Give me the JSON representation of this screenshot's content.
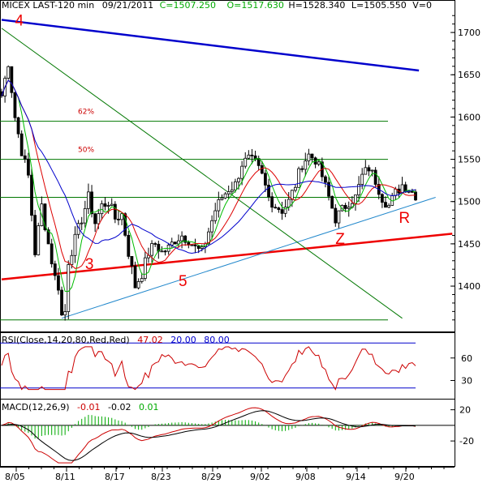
{
  "header": {
    "symbol": "MICEX LAST-120 min",
    "date": "09/21/2011",
    "close": "C=1507.250",
    "open": "O=1517.630",
    "high": "H=1528.340",
    "low": "L=1505.550",
    "volume": "V=0"
  },
  "chart_data": [
    {
      "type": "candlestick",
      "title": "MICEX LAST-120 min",
      "x_tick_labels": [
        "8/05",
        "8/11",
        "8/17",
        "8/23",
        "8/29",
        "9/02",
        "9/08",
        "9/14",
        "9/20"
      ],
      "y_tick_labels": [
        "1700",
        "1650",
        "1600",
        "1550",
        "1500",
        "1450",
        "1400"
      ],
      "ylim": [
        1355,
        1725
      ],
      "grid": false,
      "price_keypoints": [
        [
          0,
          1625
        ],
        [
          2,
          1665
        ],
        [
          4,
          1600
        ],
        [
          6,
          1560
        ],
        [
          8,
          1530
        ],
        [
          10,
          1440
        ],
        [
          12,
          1495
        ],
        [
          14,
          1450
        ],
        [
          16,
          1410
        ],
        [
          17,
          1400
        ],
        [
          18,
          1365
        ],
        [
          19,
          1370
        ],
        [
          20,
          1430
        ],
        [
          22,
          1455
        ],
        [
          24,
          1480
        ],
        [
          26,
          1505
        ],
        [
          28,
          1475
        ],
        [
          30,
          1495
        ],
        [
          32,
          1500
        ],
        [
          34,
          1480
        ],
        [
          36,
          1485
        ],
        [
          38,
          1440
        ],
        [
          40,
          1400
        ],
        [
          42,
          1415
        ],
        [
          44,
          1440
        ],
        [
          46,
          1450
        ],
        [
          48,
          1440
        ],
        [
          50,
          1445
        ],
        [
          52,
          1455
        ],
        [
          54,
          1460
        ],
        [
          56,
          1455
        ],
        [
          58,
          1445
        ],
        [
          60,
          1440
        ],
        [
          62,
          1465
        ],
        [
          64,
          1490
        ],
        [
          66,
          1505
        ],
        [
          68,
          1515
        ],
        [
          70,
          1520
        ],
        [
          72,
          1545
        ],
        [
          74,
          1550
        ],
        [
          76,
          1545
        ],
        [
          78,
          1530
        ],
        [
          80,
          1505
        ],
        [
          82,
          1495
        ],
        [
          84,
          1490
        ],
        [
          86,
          1500
        ],
        [
          88,
          1520
        ],
        [
          90,
          1545
        ],
        [
          92,
          1555
        ],
        [
          94,
          1550
        ],
        [
          96,
          1530
        ],
        [
          98,
          1505
        ],
        [
          100,
          1480
        ],
        [
          102,
          1490
        ],
        [
          104,
          1500
        ],
        [
          106,
          1505
        ],
        [
          108,
          1530
        ],
        [
          110,
          1540
        ],
        [
          112,
          1525
        ],
        [
          114,
          1505
        ],
        [
          116,
          1495
        ],
        [
          118,
          1510
        ],
        [
          120,
          1520
        ],
        [
          122,
          1515
        ],
        [
          124,
          1508
        ]
      ],
      "candle_count": 125,
      "horizontal_levels": [
        1595,
        1550,
        1505,
        1360
      ],
      "level_labels": [
        {
          "label": "62%",
          "price": 1595
        },
        {
          "label": "50%",
          "price": 1550
        }
      ],
      "trend_lines": [
        {
          "name": "4",
          "color": "#0000cc",
          "from": [
            0,
            1715
          ],
          "to": [
            125,
            1655
          ]
        },
        {
          "name": "3",
          "color": "#ee0000",
          "from": [
            0,
            1408
          ],
          "to": [
            135,
            1462
          ]
        },
        {
          "name": "blue-support",
          "color": "#2288cc",
          "from": [
            18,
            1362
          ],
          "to": [
            130,
            1505
          ]
        },
        {
          "name": "green-fan",
          "color": "#007700",
          "from": [
            0,
            1705
          ],
          "to": [
            120,
            1362
          ]
        }
      ],
      "annotations": [
        {
          "text": "4",
          "color": "#ee0000",
          "x": 4,
          "price": 1708
        },
        {
          "text": "3",
          "color": "#ee0000",
          "x": 25,
          "price": 1420
        },
        {
          "text": "5",
          "color": "#ee0000",
          "x": 53,
          "price": 1400
        },
        {
          "text": "Z",
          "color": "#ee0000",
          "x": 100,
          "price": 1450
        },
        {
          "text": "R",
          "color": "#ee0000",
          "x": 119,
          "price": 1475
        }
      ],
      "moving_averages": [
        {
          "color": "#00bb00",
          "period": 5
        },
        {
          "color": "#dd0000",
          "period": 10
        },
        {
          "color": "#0000cc",
          "period": 20
        }
      ]
    },
    {
      "type": "line",
      "title": "RSI(Close,14,20,80,Red,Red)",
      "values_text": [
        "47.02",
        "20.00",
        "80.00"
      ],
      "y_tick_labels": [
        "60",
        "30"
      ],
      "ylim": [
        10,
        90
      ],
      "levels": [
        80,
        20
      ],
      "last_value": 47.02
    },
    {
      "type": "bar",
      "title": "MACD(12,26,9)",
      "values_text": [
        "-0.01",
        "-0.02",
        "0.01"
      ],
      "y_tick_labels": [
        "20",
        "-20"
      ],
      "ylim": [
        -50,
        30
      ]
    }
  ]
}
